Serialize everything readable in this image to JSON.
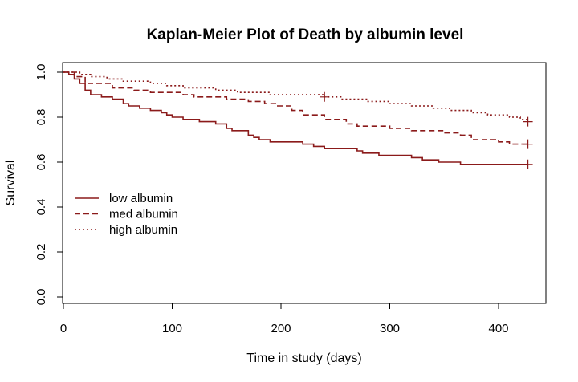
{
  "chart_data": {
    "type": "line",
    "title": "Kaplan-Meier Plot of Death by albumin level",
    "xlabel": "Time in study (days)",
    "ylabel": "Survival",
    "xlim": [
      0,
      440
    ],
    "ylim": [
      0,
      1
    ],
    "xticks": [
      0,
      100,
      200,
      300,
      400
    ],
    "yticks": [
      0.0,
      0.2,
      0.4,
      0.6,
      0.8,
      1.0
    ],
    "xtick_labels": [
      "0",
      "100",
      "200",
      "300",
      "400"
    ],
    "ytick_labels": [
      "0.0",
      "0.2",
      "0.4",
      "0.6",
      "0.8",
      "1.0"
    ],
    "grid": false,
    "legend_position": "middle-left",
    "line_color": "#8b1a1a",
    "series": [
      {
        "name": "low albumin",
        "style": "solid",
        "points": [
          [
            0,
            1.0
          ],
          [
            5,
            0.99
          ],
          [
            10,
            0.97
          ],
          [
            15,
            0.95
          ],
          [
            20,
            0.92
          ],
          [
            25,
            0.9
          ],
          [
            35,
            0.89
          ],
          [
            45,
            0.88
          ],
          [
            55,
            0.86
          ],
          [
            60,
            0.85
          ],
          [
            70,
            0.84
          ],
          [
            80,
            0.83
          ],
          [
            90,
            0.82
          ],
          [
            95,
            0.81
          ],
          [
            100,
            0.8
          ],
          [
            110,
            0.79
          ],
          [
            125,
            0.78
          ],
          [
            140,
            0.77
          ],
          [
            150,
            0.75
          ],
          [
            155,
            0.74
          ],
          [
            170,
            0.72
          ],
          [
            175,
            0.71
          ],
          [
            180,
            0.7
          ],
          [
            190,
            0.69
          ],
          [
            220,
            0.68
          ],
          [
            230,
            0.67
          ],
          [
            240,
            0.66
          ],
          [
            270,
            0.65
          ],
          [
            275,
            0.64
          ],
          [
            290,
            0.63
          ],
          [
            320,
            0.62
          ],
          [
            330,
            0.61
          ],
          [
            345,
            0.6
          ],
          [
            365,
            0.59
          ],
          [
            427,
            0.59
          ]
        ],
        "censored": [
          [
            427,
            0.59
          ]
        ]
      },
      {
        "name": "med albumin",
        "style": "dashed",
        "points": [
          [
            0,
            1.0
          ],
          [
            10,
            0.98
          ],
          [
            20,
            0.95
          ],
          [
            45,
            0.93
          ],
          [
            65,
            0.92
          ],
          [
            80,
            0.91
          ],
          [
            110,
            0.9
          ],
          [
            120,
            0.89
          ],
          [
            150,
            0.88
          ],
          [
            170,
            0.87
          ],
          [
            185,
            0.86
          ],
          [
            195,
            0.85
          ],
          [
            210,
            0.83
          ],
          [
            220,
            0.81
          ],
          [
            240,
            0.79
          ],
          [
            260,
            0.77
          ],
          [
            270,
            0.76
          ],
          [
            300,
            0.75
          ],
          [
            320,
            0.74
          ],
          [
            350,
            0.73
          ],
          [
            365,
            0.72
          ],
          [
            375,
            0.7
          ],
          [
            400,
            0.69
          ],
          [
            410,
            0.68
          ],
          [
            427,
            0.68
          ]
        ],
        "censored": [
          [
            427,
            0.68
          ]
        ]
      },
      {
        "name": "high albumin",
        "style": "dotted",
        "points": [
          [
            0,
            1.0
          ],
          [
            15,
            0.99
          ],
          [
            25,
            0.98
          ],
          [
            40,
            0.97
          ],
          [
            55,
            0.96
          ],
          [
            80,
            0.95
          ],
          [
            95,
            0.94
          ],
          [
            110,
            0.93
          ],
          [
            140,
            0.92
          ],
          [
            160,
            0.91
          ],
          [
            190,
            0.9
          ],
          [
            240,
            0.89
          ],
          [
            255,
            0.88
          ],
          [
            280,
            0.87
          ],
          [
            300,
            0.86
          ],
          [
            320,
            0.85
          ],
          [
            340,
            0.84
          ],
          [
            355,
            0.83
          ],
          [
            375,
            0.82
          ],
          [
            390,
            0.81
          ],
          [
            410,
            0.8
          ],
          [
            420,
            0.79
          ],
          [
            427,
            0.78
          ]
        ],
        "censored": [
          [
            240,
            0.89
          ],
          [
            427,
            0.78
          ]
        ]
      }
    ]
  }
}
